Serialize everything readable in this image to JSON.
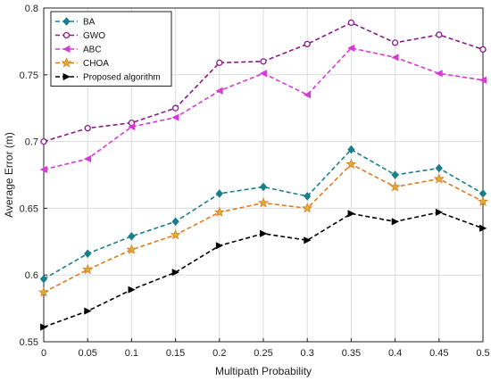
{
  "chart_data": {
    "type": "line",
    "title": "",
    "xlabel": "Multipath Probability",
    "ylabel": "Average Error (m)",
    "x": [
      0,
      0.05,
      0.1,
      0.15,
      0.2,
      0.25,
      0.3,
      0.35,
      0.4,
      0.45,
      0.5
    ],
    "x_tick_labels": [
      "0",
      "0.05",
      "0.1",
      "0.15",
      "0.2",
      "0.25",
      "0.3",
      "0.35",
      "0.4",
      "0.45",
      "0.5"
    ],
    "y_tick_labels": [
      "0.55",
      "0.6",
      "0.65",
      "0.7",
      "0.75",
      "0.8"
    ],
    "xlim": [
      0,
      0.5
    ],
    "ylim": [
      0.55,
      0.8
    ],
    "grid": true,
    "legend_position": "top-left",
    "series": [
      {
        "name": "BA",
        "color": "#1a7f8a",
        "marker": "diamond",
        "values": [
          0.597,
          0.616,
          0.629,
          0.64,
          0.661,
          0.666,
          0.659,
          0.694,
          0.675,
          0.68,
          0.661
        ]
      },
      {
        "name": "GWO",
        "color": "#8a1a8a",
        "marker": "circle",
        "values": [
          0.7,
          0.71,
          0.714,
          0.725,
          0.759,
          0.76,
          0.773,
          0.789,
          0.774,
          0.78,
          0.769
        ]
      },
      {
        "name": "ABC",
        "color": "#d63ad6",
        "marker": "left-triangle",
        "values": [
          0.679,
          0.687,
          0.711,
          0.718,
          0.738,
          0.751,
          0.735,
          0.77,
          0.763,
          0.751,
          0.746
        ]
      },
      {
        "name": "CHOA",
        "color": "#e07b1c",
        "marker": "star",
        "values": [
          0.587,
          0.604,
          0.619,
          0.63,
          0.647,
          0.654,
          0.65,
          0.683,
          0.666,
          0.672,
          0.655
        ]
      },
      {
        "name": "Proposed algorithm",
        "color": "#000000",
        "marker": "right-triangle",
        "values": [
          0.561,
          0.573,
          0.589,
          0.602,
          0.622,
          0.631,
          0.626,
          0.646,
          0.64,
          0.647,
          0.635
        ]
      }
    ]
  }
}
